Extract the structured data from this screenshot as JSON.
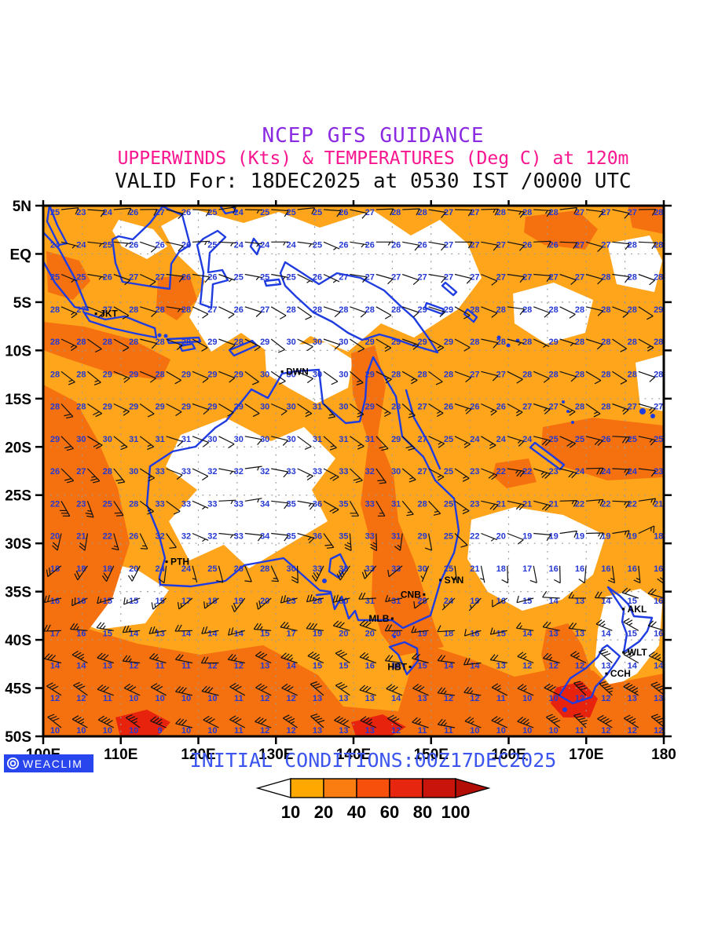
{
  "header": {
    "title1": "NCEP GFS GUIDANCE",
    "title2": "UPPERWINDS (Kts) & TEMPERATURES (Deg C) at 120m",
    "title3": "VALID For: 18DEC2025 at 0530 IST /0000 UTC",
    "title1_color": "#8a2be2",
    "title2_color": "#f81690",
    "title3_color": "#101010"
  },
  "footer": {
    "initial_conditions": "INITIAL CONDITIONS:00Z17DEC2025",
    "initial_color": "#3b55ee",
    "logo_text": "WEACLIM",
    "logo_bg": "#2946ee"
  },
  "colorbar": {
    "values": [
      "10",
      "20",
      "40",
      "60",
      "80",
      "100"
    ],
    "colors": [
      "#ffa800",
      "#f97d10",
      "#f6500c",
      "#e6260f",
      "#c9140c"
    ],
    "left_arrow_color": "#ffffff",
    "right_arrow_color": "#b30d08",
    "outline": "#000000"
  },
  "axes": {
    "lat_ticks": [
      [
        "5N",
        5
      ],
      [
        "EQ",
        0
      ],
      [
        "5S",
        -5
      ],
      [
        "10S",
        -10
      ],
      [
        "15S",
        -15
      ],
      [
        "20S",
        -20
      ],
      [
        "25S",
        -25
      ],
      [
        "30S",
        -30
      ],
      [
        "35S",
        -35
      ],
      [
        "40S",
        -40
      ],
      [
        "45S",
        -45
      ],
      [
        "50S",
        -50
      ]
    ],
    "lon_ticks": [
      [
        "100E",
        100
      ],
      [
        "110E",
        110
      ],
      [
        "120E",
        120
      ],
      [
        "130E",
        130
      ],
      [
        "140E",
        140
      ],
      [
        "150E",
        150
      ],
      [
        "160E",
        160
      ],
      [
        "170E",
        170
      ],
      [
        "180",
        180
      ]
    ]
  },
  "cities": [
    {
      "name": "JKT",
      "lon": 106.8,
      "lat": -6.2,
      "side": "right"
    },
    {
      "name": "DWN",
      "lon": 130.8,
      "lat": -12.2,
      "side": "right"
    },
    {
      "name": "PTH",
      "lon": 115.9,
      "lat": -31.9,
      "side": "right"
    },
    {
      "name": "SYN",
      "lon": 151.2,
      "lat": -33.8,
      "side": "right"
    },
    {
      "name": "CNB",
      "lon": 149.1,
      "lat": -35.3,
      "side": "left"
    },
    {
      "name": "MLB",
      "lon": 145.0,
      "lat": -37.8,
      "side": "left"
    },
    {
      "name": "HBT",
      "lon": 147.3,
      "lat": -42.8,
      "side": "left"
    },
    {
      "name": "AKL",
      "lon": 174.8,
      "lat": -36.8,
      "side": "right"
    },
    {
      "name": "WLT",
      "lon": 174.8,
      "lat": -41.3,
      "side": "right"
    },
    {
      "name": "CCH",
      "lon": 172.6,
      "lat": -43.5,
      "side": "right"
    }
  ],
  "chart_data": {
    "type": "heatmap",
    "title": "NCEP GFS GUIDANCE",
    "subtitle": "UPPERWINDS (Kts) & TEMPERATURES (Deg C) at 120m",
    "shading_variable": "wind speed (kts)",
    "overlay_variable": "temperature (Deg C)",
    "scale_values": [
      10,
      20,
      40,
      60,
      80,
      100
    ],
    "lon_range": [
      100,
      180
    ],
    "lat_range": [
      5,
      -50
    ],
    "grid_lons": [
      100,
      105,
      110,
      115,
      120,
      125,
      130,
      135,
      140,
      145,
      150,
      155,
      160,
      165,
      170,
      175,
      180
    ],
    "grid_lats": [
      5,
      0,
      -5,
      -10,
      -15,
      -20,
      -25,
      -30,
      -35,
      -40,
      -45,
      -50
    ],
    "temperature_c": [
      [
        26,
        23,
        25,
        27,
        26,
        24,
        26,
        25,
        27,
        28,
        28,
        27,
        28,
        28,
        27,
        27,
        28
      ],
      [
        23,
        24,
        26,
        26,
        25,
        24,
        23,
        25,
        26,
        25,
        26,
        27,
        26,
        26,
        27,
        28,
        28
      ],
      [
        28,
        27,
        27,
        28,
        27,
        26,
        27,
        28,
        28,
        28,
        29,
        28,
        28,
        28,
        28,
        28,
        29
      ],
      [
        28,
        28,
        29,
        28,
        29,
        29,
        30,
        30,
        30,
        29,
        29,
        28,
        28,
        29,
        28,
        28,
        28
      ],
      [
        28,
        28,
        29,
        29,
        28,
        29,
        30,
        31,
        29,
        28,
        27,
        26,
        27,
        28,
        28,
        28,
        28
      ],
      [
        29,
        30,
        31,
        32,
        31,
        30,
        30,
        31,
        32,
        30,
        26,
        24,
        23,
        24,
        25,
        25,
        24
      ],
      [
        22,
        24,
        26,
        33,
        34,
        33,
        35,
        36,
        34,
        31,
        27,
        23,
        21,
        22,
        23,
        23,
        22
      ],
      [
        19,
        20,
        22,
        32,
        31,
        33,
        35,
        36,
        34,
        31,
        28,
        22,
        19,
        18,
        19,
        18,
        17
      ],
      [
        16,
        16,
        15,
        16,
        18,
        20,
        22,
        30,
        33,
        35,
        30,
        20,
        16,
        14,
        13,
        15,
        16
      ],
      [
        17,
        16,
        14,
        13,
        13,
        13,
        15,
        17,
        18,
        18,
        17,
        16,
        15,
        13,
        13,
        15,
        16
      ],
      [
        12,
        12,
        11,
        10,
        10,
        11,
        12,
        13,
        13,
        14,
        13,
        12,
        11,
        10,
        12,
        13,
        13
      ],
      [
        10,
        10,
        10,
        9,
        10,
        11,
        12,
        13,
        13,
        12,
        11,
        10,
        10,
        10,
        11,
        12,
        12
      ]
    ],
    "wind_speed_kts": [
      [
        12,
        10,
        10,
        12,
        10,
        8,
        10,
        10,
        12,
        12,
        12,
        15,
        12,
        12,
        12,
        12,
        12
      ],
      [
        5,
        5,
        8,
        8,
        5,
        5,
        5,
        5,
        5,
        8,
        8,
        10,
        8,
        8,
        8,
        10,
        10
      ],
      [
        12,
        10,
        8,
        8,
        10,
        8,
        8,
        10,
        10,
        12,
        10,
        8,
        10,
        12,
        12,
        12,
        12
      ],
      [
        15,
        12,
        10,
        8,
        8,
        10,
        10,
        8,
        12,
        15,
        12,
        8,
        5,
        5,
        8,
        12,
        12
      ],
      [
        15,
        15,
        12,
        10,
        8,
        10,
        12,
        15,
        18,
        15,
        12,
        10,
        12,
        15,
        15,
        15,
        12
      ],
      [
        20,
        22,
        15,
        12,
        8,
        8,
        10,
        15,
        18,
        18,
        15,
        18,
        22,
        22,
        18,
        15,
        15
      ],
      [
        25,
        25,
        18,
        10,
        5,
        5,
        12,
        18,
        20,
        18,
        12,
        20,
        22,
        20,
        15,
        12,
        12
      ],
      [
        25,
        22,
        15,
        8,
        5,
        8,
        15,
        20,
        25,
        15,
        8,
        5,
        8,
        10,
        12,
        15,
        15
      ],
      [
        20,
        18,
        15,
        12,
        10,
        15,
        20,
        25,
        28,
        12,
        5,
        5,
        8,
        10,
        15,
        18,
        18
      ],
      [
        25,
        28,
        25,
        22,
        20,
        25,
        28,
        30,
        28,
        22,
        15,
        12,
        15,
        18,
        20,
        25,
        25
      ],
      [
        30,
        32,
        30,
        28,
        25,
        28,
        32,
        35,
        30,
        28,
        25,
        22,
        25,
        28,
        38,
        40,
        38
      ],
      [
        35,
        38,
        35,
        32,
        30,
        32,
        35,
        38,
        35,
        32,
        30,
        28,
        32,
        35,
        45,
        42,
        40
      ]
    ],
    "wind_dir_from_deg": [
      [
        80,
        85,
        90,
        95,
        90,
        85,
        90,
        90,
        95,
        90,
        90,
        95,
        90,
        90,
        95,
        95,
        95
      ],
      [
        100,
        100,
        110,
        100,
        95,
        90,
        100,
        110,
        100,
        95,
        100,
        100,
        95,
        95,
        100,
        100,
        100
      ],
      [
        120,
        115,
        110,
        105,
        110,
        115,
        120,
        115,
        110,
        110,
        115,
        110,
        105,
        110,
        110,
        115,
        110
      ],
      [
        125,
        120,
        115,
        110,
        115,
        120,
        120,
        115,
        120,
        120,
        115,
        110,
        105,
        110,
        115,
        120,
        115
      ],
      [
        130,
        125,
        120,
        115,
        120,
        120,
        125,
        130,
        130,
        125,
        120,
        110,
        115,
        120,
        120,
        115,
        110
      ],
      [
        135,
        130,
        125,
        115,
        110,
        100,
        110,
        130,
        135,
        130,
        120,
        115,
        110,
        105,
        100,
        95,
        90
      ],
      [
        150,
        145,
        135,
        120,
        100,
        80,
        90,
        120,
        140,
        140,
        120,
        110,
        100,
        95,
        90,
        85,
        85
      ],
      [
        200,
        190,
        170,
        140,
        110,
        90,
        100,
        140,
        190,
        200,
        160,
        120,
        100,
        90,
        80,
        70,
        70
      ],
      [
        250,
        245,
        240,
        230,
        220,
        210,
        230,
        250,
        260,
        250,
        230,
        200,
        250,
        260,
        270,
        280,
        280
      ],
      [
        280,
        280,
        275,
        270,
        265,
        270,
        280,
        290,
        290,
        280,
        270,
        260,
        270,
        280,
        290,
        295,
        295
      ],
      [
        295,
        300,
        295,
        290,
        285,
        290,
        300,
        305,
        300,
        290,
        285,
        280,
        290,
        300,
        310,
        310,
        305
      ],
      [
        300,
        305,
        300,
        295,
        290,
        295,
        300,
        305,
        300,
        295,
        290,
        285,
        295,
        305,
        310,
        305,
        300
      ]
    ],
    "shade_colors": {
      "calm_lt10": "#ffffff",
      "10to20": "#ffa51c",
      "20to40": "#f5710f",
      "40to60": "#e8230d"
    },
    "temp_text_color": "#2438d2",
    "coast_color": "#1f3ce0",
    "grid_on": true,
    "legend_position": "bottom"
  }
}
